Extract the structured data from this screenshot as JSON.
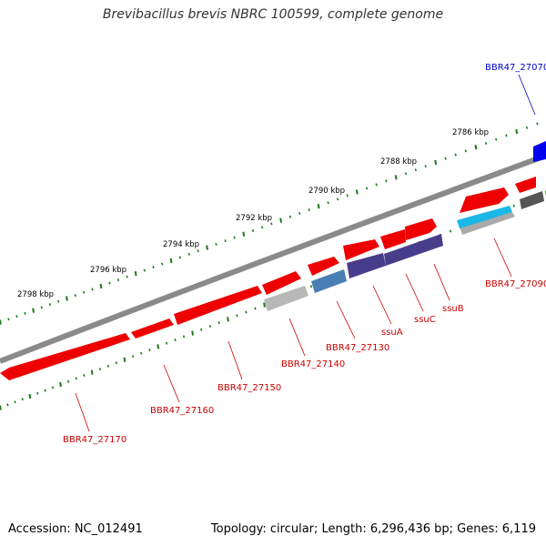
{
  "title": "Brevibacillus brevis NBRC 100599, complete genome",
  "footer": {
    "accession": "Accession: NC_012491",
    "stats": "Topology: circular; Length: 6,296,436 bp; Genes: 6,119"
  },
  "colors": {
    "backbone": "#8a8a8a",
    "cds": "#ff0000",
    "cds_dark": "#d40000",
    "label_red": "#cc0000",
    "label_blue": "#0000cc",
    "tick": "#1a7a1a"
  },
  "scale": {
    "ticks": [
      {
        "kbp": 2786,
        "label": "2786 kbp"
      },
      {
        "kbp": 2788,
        "label": "2788 kbp"
      },
      {
        "kbp": 2790,
        "label": "2790 kbp"
      },
      {
        "kbp": 2792,
        "label": "2792 kbp"
      },
      {
        "kbp": 2794,
        "label": "2794 kbp"
      },
      {
        "kbp": 2796,
        "label": "2796 kbp"
      },
      {
        "kbp": 2798,
        "label": "2798 kbp"
      }
    ]
  },
  "genes": [
    {
      "id": "g27070",
      "label": "BBR47_27070",
      "label_color": "blue"
    },
    {
      "id": "g27090",
      "label": "BBR47_27090",
      "label_color": "red"
    },
    {
      "id": "gssuB",
      "label": "ssuB",
      "label_color": "red"
    },
    {
      "id": "gssuC",
      "label": "ssuC",
      "label_color": "red"
    },
    {
      "id": "gssuA",
      "label": "ssuA",
      "label_color": "red"
    },
    {
      "id": "g27130",
      "label": "BBR47_27130",
      "label_color": "red"
    },
    {
      "id": "g27140",
      "label": "BBR47_27140",
      "label_color": "red"
    },
    {
      "id": "g27150",
      "label": "BBR47_27150",
      "label_color": "red"
    },
    {
      "id": "g27160",
      "label": "BBR47_27160",
      "label_color": "red"
    },
    {
      "id": "g27170",
      "label": "BBR47_27170",
      "label_color": "red"
    }
  ]
}
